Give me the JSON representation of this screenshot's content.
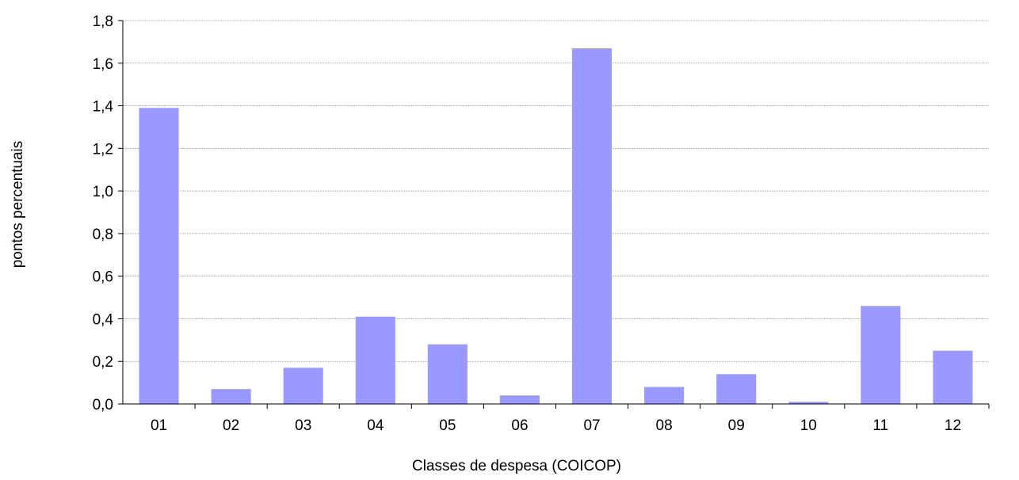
{
  "chart_data": {
    "type": "bar",
    "categories": [
      "01",
      "02",
      "03",
      "04",
      "05",
      "06",
      "07",
      "08",
      "09",
      "10",
      "11",
      "12"
    ],
    "values": [
      1.39,
      0.07,
      0.17,
      0.41,
      0.28,
      0.04,
      1.67,
      0.08,
      0.14,
      0.01,
      0.46,
      0.25
    ],
    "xlabel": "Classes de despesa (COICOP)",
    "ylabel": "pontos percentuais",
    "ylim": [
      0,
      1.8
    ],
    "yticks": [
      "0,0",
      "0,2",
      "0,4",
      "0,6",
      "0,8",
      "1,0",
      "1,2",
      "1,4",
      "1,6",
      "1,8"
    ],
    "grid": true,
    "bar_color": "#9999ff",
    "legend": "none"
  }
}
